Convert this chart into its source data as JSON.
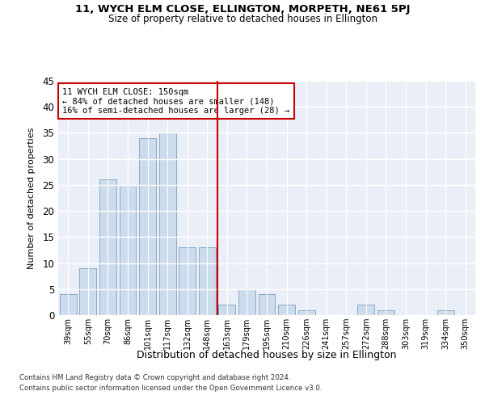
{
  "title": "11, WYCH ELM CLOSE, ELLINGTON, MORPETH, NE61 5PJ",
  "subtitle": "Size of property relative to detached houses in Ellington",
  "xlabel": "Distribution of detached houses by size in Ellington",
  "ylabel": "Number of detached properties",
  "bar_labels": [
    "39sqm",
    "55sqm",
    "70sqm",
    "86sqm",
    "101sqm",
    "117sqm",
    "132sqm",
    "148sqm",
    "163sqm",
    "179sqm",
    "195sqm",
    "210sqm",
    "226sqm",
    "241sqm",
    "257sqm",
    "272sqm",
    "288sqm",
    "303sqm",
    "319sqm",
    "334sqm",
    "350sqm"
  ],
  "bar_values": [
    4,
    9,
    26,
    25,
    34,
    35,
    13,
    13,
    2,
    5,
    4,
    2,
    1,
    0,
    0,
    2,
    1,
    0,
    0,
    1,
    0
  ],
  "bar_color": "#ccdcec",
  "bar_edgecolor": "#88aac8",
  "vline_x": 7.5,
  "vline_color": "#cc0000",
  "annotation_line1": "11 WYCH ELM CLOSE: 150sqm",
  "annotation_line2": "← 84% of detached houses are smaller (148)",
  "annotation_line3": "16% of semi-detached houses are larger (28) →",
  "annotation_box_facecolor": "white",
  "annotation_box_edgecolor": "#cc0000",
  "ylim": [
    0,
    45
  ],
  "yticks": [
    0,
    5,
    10,
    15,
    20,
    25,
    30,
    35,
    40,
    45
  ],
  "bg_color": "#eaeff7",
  "grid_color": "#ffffff",
  "footer_line1": "Contains HM Land Registry data © Crown copyright and database right 2024.",
  "footer_line2": "Contains public sector information licensed under the Open Government Licence v3.0."
}
